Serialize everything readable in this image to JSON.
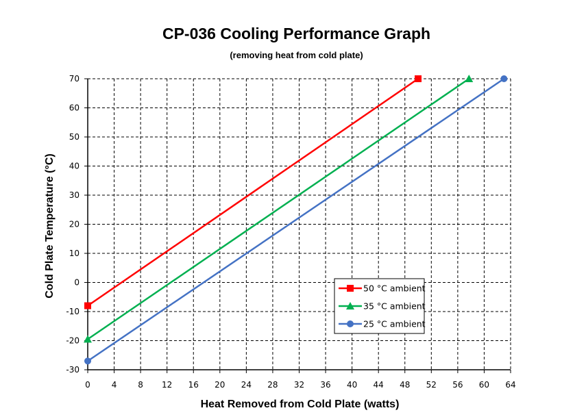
{
  "chart_data": {
    "type": "line",
    "title": "CP-036 Cooling Performance Graph",
    "subtitle": "(removing heat from cold plate)",
    "xlabel": "Heat Removed from Cold Plate (watts)",
    "ylabel": "Cold Plate Temperature (°C)",
    "xlim": [
      0,
      64
    ],
    "ylim": [
      -30,
      70
    ],
    "xticks": [
      0,
      4,
      8,
      12,
      16,
      20,
      24,
      28,
      32,
      36,
      40,
      44,
      48,
      52,
      56,
      60,
      64
    ],
    "yticks": [
      -30,
      -20,
      -10,
      0,
      10,
      20,
      30,
      40,
      50,
      60,
      70
    ],
    "grid": true,
    "legend_position": "lower-right",
    "series": [
      {
        "name": "50 °C ambient",
        "color": "#ff0000",
        "marker": "square",
        "points": [
          [
            0,
            -8
          ],
          [
            50,
            70
          ]
        ]
      },
      {
        "name": "35 °C ambient",
        "color": "#00b050",
        "marker": "triangle",
        "points": [
          [
            0,
            -19.5
          ],
          [
            57.7,
            70
          ]
        ]
      },
      {
        "name": "25 °C ambient",
        "color": "#4472c4",
        "marker": "circle",
        "points": [
          [
            0,
            -27
          ],
          [
            63,
            70
          ]
        ]
      }
    ]
  }
}
